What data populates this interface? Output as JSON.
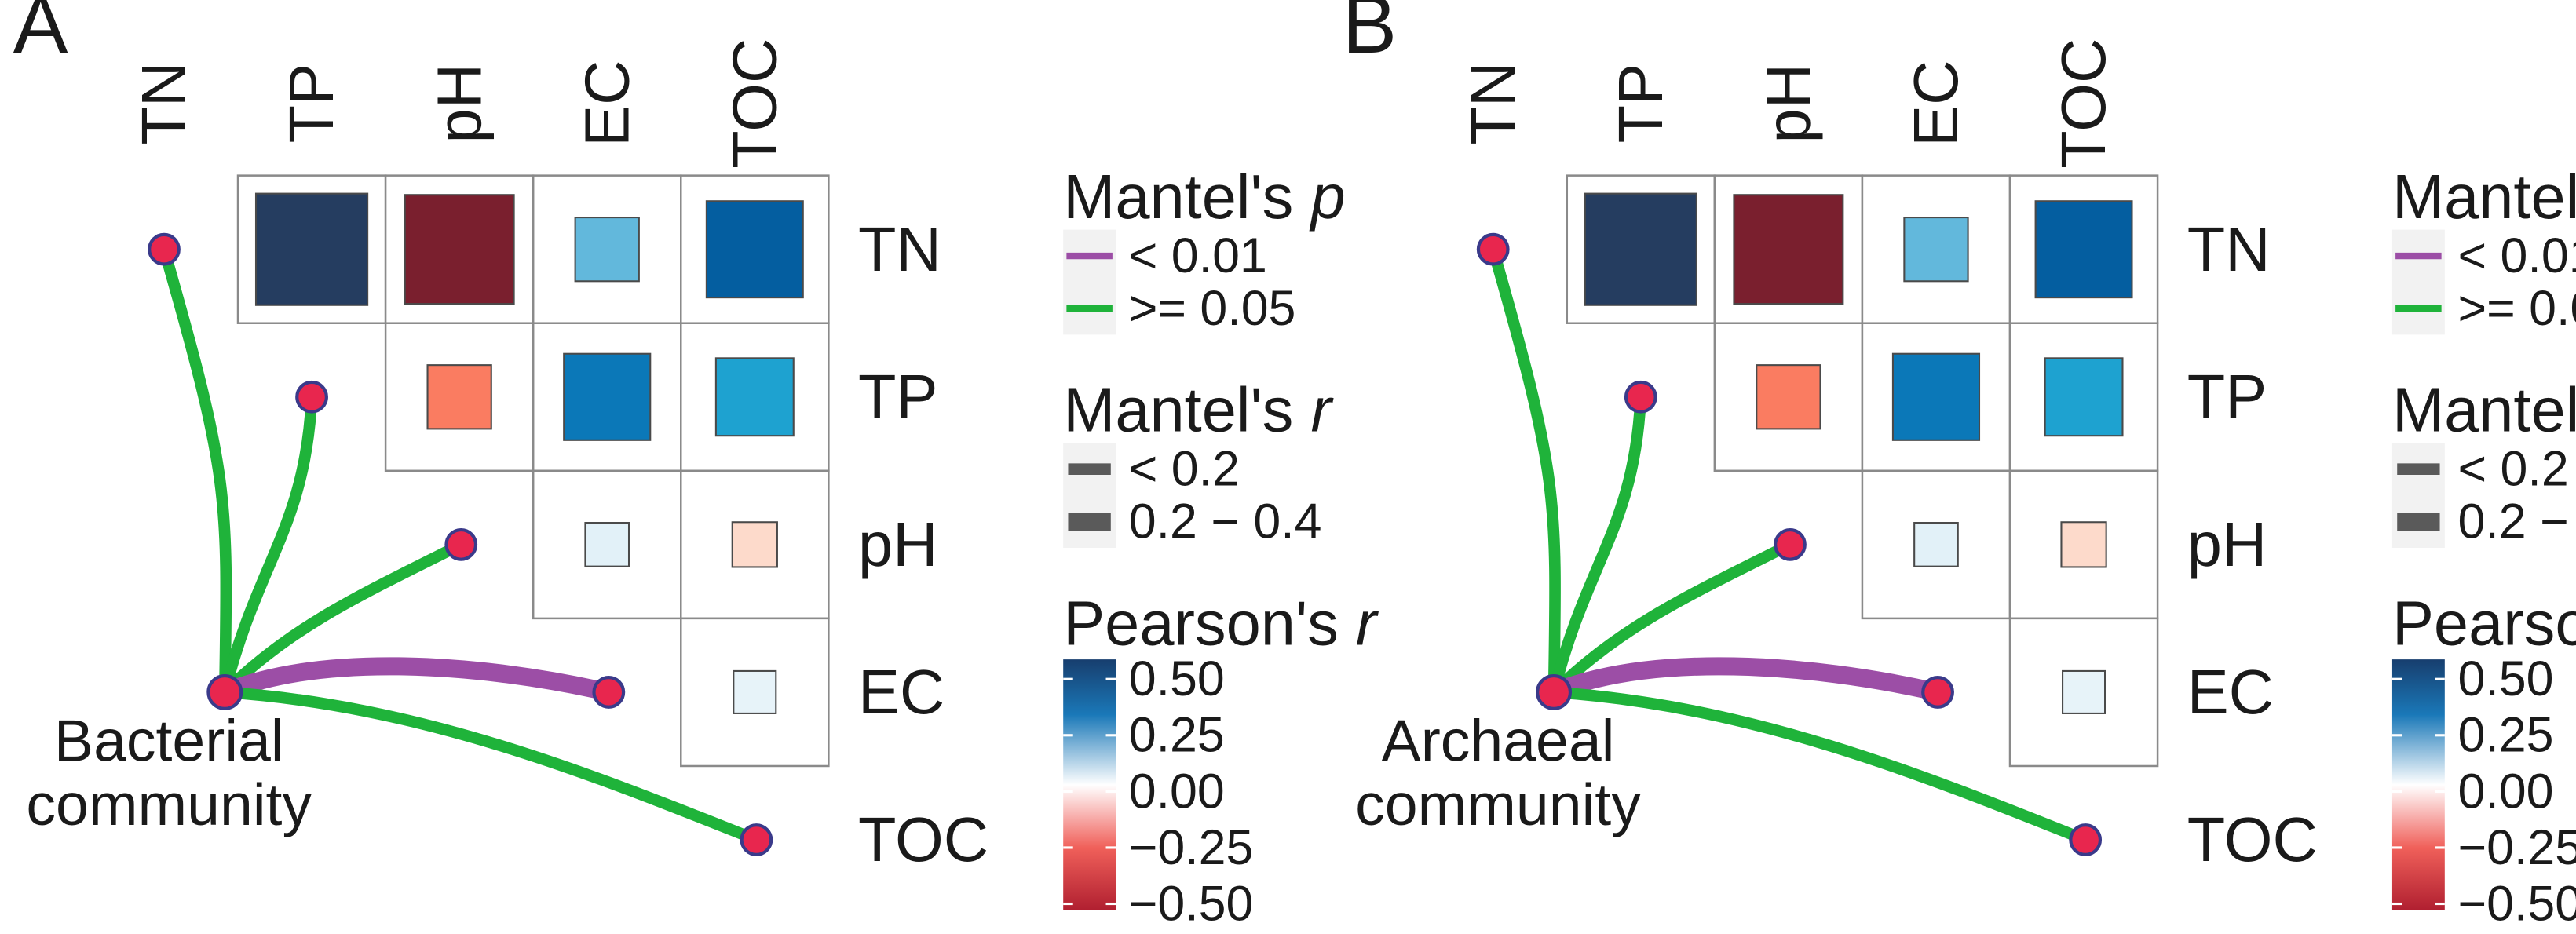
{
  "variables": [
    "TN",
    "TP",
    "pH",
    "EC",
    "TOC"
  ],
  "colors": {
    "p_lt_001": "#9c4ea6",
    "p_ge_005": "#1fb33a",
    "node_fill": "#e8264e",
    "node_stroke": "#3a3a8a",
    "grid": "#8a8a8a",
    "legend_bg": "#f2f2f2"
  },
  "legend": {
    "p_title": "Mantel's",
    "p_title_symbol": "p",
    "p_items": [
      "< 0.01",
      ">= 0.05"
    ],
    "r_title": "Mantel's",
    "r_title_symbol": "r",
    "r_items": [
      "< 0.2",
      "0.2 − 0.4"
    ],
    "pearson_title": "Pearson's",
    "pearson_symbol": "r",
    "colorbar_ticks": [
      "0.50",
      "0.25",
      "0.00",
      "−0.25",
      "−0.50"
    ]
  },
  "chart_data": [
    {
      "type": "heatmap",
      "panel": "A",
      "community_label_lines": [
        "Bacterial",
        "community"
      ],
      "variables": [
        "TN",
        "TP",
        "pH",
        "EC",
        "TOC"
      ],
      "correlation_cells": [
        {
          "row": "TN",
          "col": "TP",
          "r": 0.62
        },
        {
          "row": "TN",
          "col": "pH",
          "r": -0.58
        },
        {
          "row": "TN",
          "col": "EC",
          "r": 0.22
        },
        {
          "row": "TN",
          "col": "TOC",
          "r": 0.48
        },
        {
          "row": "TP",
          "col": "pH",
          "r": -0.22
        },
        {
          "row": "TP",
          "col": "EC",
          "r": 0.4
        },
        {
          "row": "TP",
          "col": "TOC",
          "r": 0.33
        },
        {
          "row": "pH",
          "col": "EC",
          "r": 0.06
        },
        {
          "row": "pH",
          "col": "TOC",
          "r": -0.07
        },
        {
          "row": "EC",
          "col": "TOC",
          "r": 0.05
        }
      ],
      "mantel_links": [
        {
          "to": "TN",
          "p_class": ">= 0.05",
          "r_class": "< 0.2"
        },
        {
          "to": "TP",
          "p_class": ">= 0.05",
          "r_class": "< 0.2"
        },
        {
          "to": "pH",
          "p_class": ">= 0.05",
          "r_class": "< 0.2"
        },
        {
          "to": "EC",
          "p_class": "< 0.01",
          "r_class": "0.2 − 0.4"
        },
        {
          "to": "TOC",
          "p_class": ">= 0.05",
          "r_class": "< 0.2"
        }
      ],
      "color_range": [
        -0.5,
        0.5
      ]
    },
    {
      "type": "heatmap",
      "panel": "B",
      "community_label_lines": [
        "Archaeal",
        "community"
      ],
      "variables": [
        "TN",
        "TP",
        "pH",
        "EC",
        "TOC"
      ],
      "correlation_cells": [
        {
          "row": "TN",
          "col": "TP",
          "r": 0.62
        },
        {
          "row": "TN",
          "col": "pH",
          "r": -0.58
        },
        {
          "row": "TN",
          "col": "EC",
          "r": 0.22
        },
        {
          "row": "TN",
          "col": "TOC",
          "r": 0.48
        },
        {
          "row": "TP",
          "col": "pH",
          "r": -0.22
        },
        {
          "row": "TP",
          "col": "EC",
          "r": 0.4
        },
        {
          "row": "TP",
          "col": "TOC",
          "r": 0.33
        },
        {
          "row": "pH",
          "col": "EC",
          "r": 0.06
        },
        {
          "row": "pH",
          "col": "TOC",
          "r": -0.07
        },
        {
          "row": "EC",
          "col": "TOC",
          "r": 0.05
        }
      ],
      "mantel_links": [
        {
          "to": "TN",
          "p_class": ">= 0.05",
          "r_class": "< 0.2"
        },
        {
          "to": "TP",
          "p_class": ">= 0.05",
          "r_class": "< 0.2"
        },
        {
          "to": "pH",
          "p_class": ">= 0.05",
          "r_class": "< 0.2"
        },
        {
          "to": "EC",
          "p_class": "< 0.01",
          "r_class": "0.2 − 0.4"
        },
        {
          "to": "TOC",
          "p_class": ">= 0.05",
          "r_class": "< 0.2"
        }
      ],
      "color_range": [
        -0.5,
        0.5
      ]
    }
  ]
}
